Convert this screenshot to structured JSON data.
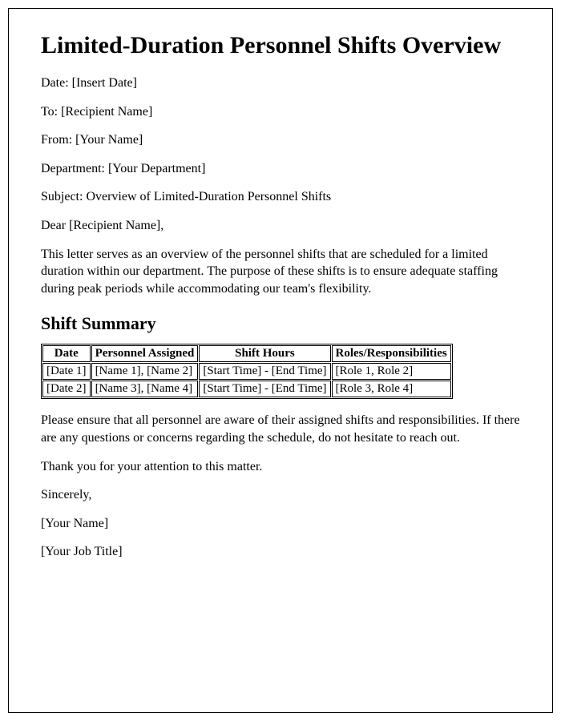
{
  "title": "Limited-Duration Personnel Shifts Overview",
  "meta": {
    "date": "Date: [Insert Date]",
    "to": "To: [Recipient Name]",
    "from": "From: [Your Name]",
    "department": "Department: [Your Department]",
    "subject": "Subject: Overview of Limited-Duration Personnel Shifts"
  },
  "salutation": "Dear [Recipient Name],",
  "intro": "This letter serves as an overview of the personnel shifts that are scheduled for a limited duration within our department. The purpose of these shifts is to ensure adequate staffing during peak periods while accommodating our team's flexibility.",
  "summary_heading": "Shift Summary",
  "table": {
    "columns": [
      "Date",
      "Personnel Assigned",
      "Shift Hours",
      "Roles/Responsibilities"
    ],
    "rows": [
      [
        "[Date 1]",
        "[Name 1], [Name 2]",
        "[Start Time] - [End Time]",
        "[Role 1, Role 2]"
      ],
      [
        "[Date 2]",
        "[Name 3], [Name 4]",
        "[Start Time] - [End Time]",
        "[Role 3, Role 4]"
      ]
    ]
  },
  "closing1": "Please ensure that all personnel are aware of their assigned shifts and responsibilities. If there are any questions or concerns regarding the schedule, do not hesitate to reach out.",
  "closing2": "Thank you for your attention to this matter.",
  "signoff": "Sincerely,",
  "signature_name": "[Your Name]",
  "signature_title": "[Your Job Title]"
}
